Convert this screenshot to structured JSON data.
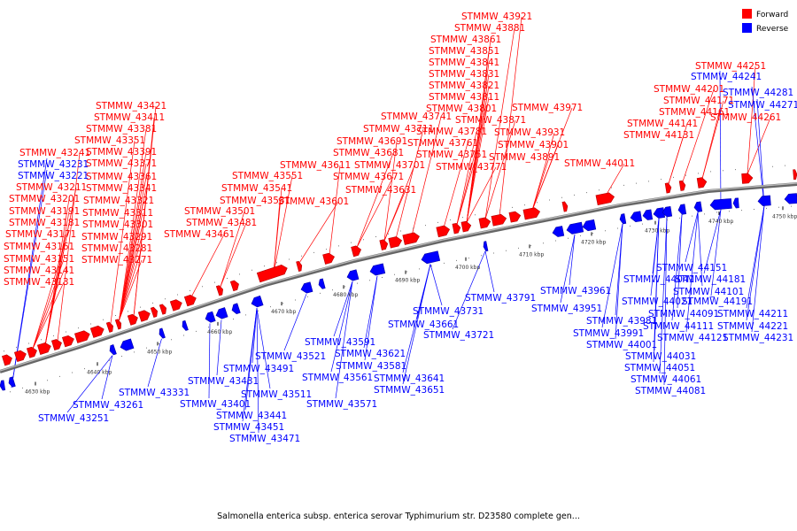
{
  "caption": "Salmonella enterica subsp. enterica serovar Typhimurium str. D23580 complete gen...",
  "legend": [
    {
      "label": "Forward",
      "color": "#ff0000"
    },
    {
      "label": "Reverse",
      "color": "#0000ff"
    }
  ],
  "colors": {
    "forward": "#ff0000",
    "reverse": "#0000ff",
    "backbone": "#888888",
    "forward_dark": "#b30000",
    "reverse_dark": "#0000a8"
  },
  "ticks": [
    "4630 kbp",
    "4640 kbp",
    "4650 kbp",
    "4660 kbp",
    "4670 kbp",
    "4680 kbp",
    "4690 kbp",
    "4700 kbp",
    "4710 kbp",
    "4720 kbp",
    "4730 kbp",
    "4740 kbp",
    "4750 kbp"
  ],
  "forward_labels": [
    "STMMW_43921",
    "STMMW_43881",
    "STMMW_43861",
    "STMMW_43851",
    "STMMW_43841",
    "STMMW_43831",
    "STMMW_43821",
    "STMMW_43811",
    "STMMW_43801",
    "STMMW_43871",
    "STMMW_43781",
    "STMMW_43761",
    "STMMW_43751",
    "STMMW_43771",
    "STMMW_43741",
    "STMMW_43711",
    "STMMW_43691",
    "STMMW_43681",
    "STMMW_43701",
    "STMMW_43671",
    "STMMW_43631",
    "STMMW_43611",
    "STMMW_43601",
    "STMMW_43971",
    "STMMW_43931",
    "STMMW_43901",
    "STMMW_43891",
    "STMMW_44011",
    "STMMW_43421",
    "STMMW_43411",
    "STMMW_43381",
    "STMMW_43351",
    "STMMW_43391",
    "STMMW_43371",
    "STMMW_43361",
    "STMMW_43341",
    "STMMW_43321",
    "STMMW_43311",
    "STMMW_43301",
    "STMMW_43291",
    "STMMW_43281",
    "STMMW_43271",
    "STMMW_43241",
    "STMMW_43211",
    "STMMW_43201",
    "STMMW_43191",
    "STMMW_43181",
    "STMMW_43171",
    "STMMW_43161",
    "STMMW_43151",
    "STMMW_43141",
    "STMMW_43131",
    "STMMW_43551",
    "STMMW_43541",
    "STMMW_43531",
    "STMMW_43501",
    "STMMW_43481",
    "STMMW_43461",
    "STMMW_44251",
    "STMMW_44201",
    "STMMW_44171",
    "STMMW_44161",
    "STMMW_44141",
    "STMMW_44131",
    "STMMW_44261"
  ],
  "reverse_labels": [
    "STMMW_43231",
    "STMMW_43221",
    "STMMW_44241",
    "STMMW_44281",
    "STMMW_44271",
    "STMMW_43791",
    "STMMW_43731",
    "STMMW_43721",
    "STMMW_43661",
    "STMMW_43591",
    "STMMW_43581",
    "STMMW_43621",
    "STMMW_43561",
    "STMMW_43641",
    "STMMW_43651",
    "STMMW_43571",
    "STMMW_43521",
    "STMMW_43491",
    "STMMW_43511",
    "STMMW_43431",
    "STMMW_43401",
    "STMMW_43441",
    "STMMW_43451",
    "STMMW_43471",
    "STMMW_43331",
    "STMMW_43261",
    "STMMW_43251",
    "STMMW_43961",
    "STMMW_43951",
    "STMMW_43981",
    "STMMW_43991",
    "STMMW_44001",
    "STMMW_44031",
    "STMMW_44051",
    "STMMW_44061",
    "STMMW_44081",
    "STMMW_44151",
    "STMMW_44041",
    "STMMW_44181",
    "STMMW_44101",
    "STMMW_44021",
    "STMMW_44191",
    "STMMW_44091",
    "STMMW_44211",
    "STMMW_44111",
    "STMMW_44221",
    "STMMW_44121",
    "STMMW_44231"
  ]
}
